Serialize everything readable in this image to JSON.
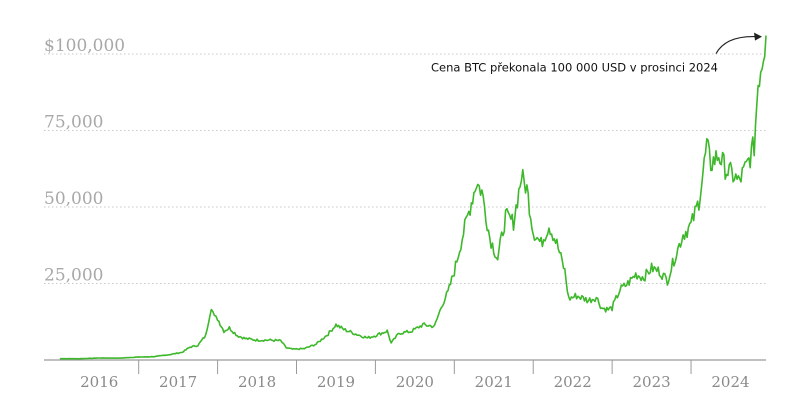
{
  "chart_data": {
    "type": "line",
    "title": "",
    "xlabel": "",
    "ylabel": "",
    "ylim": [
      0,
      107000
    ],
    "xlim": [
      2015.8,
      2024.95
    ],
    "grid": "horizontal dotted",
    "y_ticks": [
      {
        "value": 100000,
        "label": "$100,000"
      },
      {
        "value": 75000,
        "label": "75,000"
      },
      {
        "value": 50000,
        "label": "50,000"
      },
      {
        "value": 25000,
        "label": "25,000"
      }
    ],
    "x_ticks": [
      {
        "value": 2016,
        "label": "2016"
      },
      {
        "value": 2017,
        "label": "2017"
      },
      {
        "value": 2018,
        "label": "2018"
      },
      {
        "value": 2019,
        "label": "2019"
      },
      {
        "value": 2020,
        "label": "2020"
      },
      {
        "value": 2021,
        "label": "2021"
      },
      {
        "value": 2022,
        "label": "2022"
      },
      {
        "value": 2023,
        "label": "2023"
      },
      {
        "value": 2024,
        "label": "2024"
      }
    ],
    "annotation": {
      "text": "Cena BTC překonala 100 000 USD v prosinci 2024",
      "x": 2024.95,
      "y": 106000
    },
    "series": [
      {
        "color": "#3db82a",
        "x": [
          2016.0,
          2016.25,
          2016.5,
          2016.75,
          2017.0,
          2017.2,
          2017.4,
          2017.55,
          2017.65,
          2017.75,
          2017.85,
          2017.92,
          2017.96,
          2018.0,
          2018.08,
          2018.15,
          2018.25,
          2018.35,
          2018.5,
          2018.65,
          2018.8,
          2018.87,
          2018.95,
          2019.1,
          2019.25,
          2019.4,
          2019.5,
          2019.6,
          2019.75,
          2019.9,
          2020.0,
          2020.15,
          2020.2,
          2020.3,
          2020.45,
          2020.6,
          2020.75,
          2020.85,
          2020.92,
          2021.0,
          2021.1,
          2021.2,
          2021.28,
          2021.35,
          2021.45,
          2021.55,
          2021.65,
          2021.75,
          2021.85,
          2021.92,
          2022.0,
          2022.1,
          2022.2,
          2022.3,
          2022.4,
          2022.45,
          2022.55,
          2022.7,
          2022.8,
          2022.87,
          2022.95,
          2023.0,
          2023.1,
          2023.2,
          2023.3,
          2023.4,
          2023.5,
          2023.6,
          2023.7,
          2023.8,
          2023.9,
          2024.0,
          2024.1,
          2024.2,
          2024.25,
          2024.35,
          2024.45,
          2024.55,
          2024.6,
          2024.7,
          2024.8,
          2024.85,
          2024.9,
          2024.95
        ],
        "y": [
          430,
          420,
          650,
          610,
          960,
          1100,
          1800,
          2500,
          4200,
          4800,
          8000,
          17500,
          14000,
          13500,
          9500,
          10500,
          8000,
          7000,
          6500,
          6500,
          6300,
          4000,
          3500,
          3700,
          5200,
          8500,
          11500,
          10000,
          8500,
          7200,
          8000,
          9500,
          5500,
          8800,
          9300,
          11500,
          11000,
          18500,
          22000,
          29000,
          40000,
          50000,
          58000,
          55000,
          40000,
          33000,
          47000,
          45000,
          60000,
          56000,
          42000,
          38000,
          44000,
          38000,
          29000,
          20000,
          21000,
          19500,
          20500,
          17000,
          16500,
          17000,
          23000,
          25000,
          28000,
          27000,
          30000,
          29000,
          26000,
          34000,
          41000,
          44000,
          52000,
          70000,
          64000,
          67000,
          62000,
          60000,
          58000,
          63000,
          70000,
          91000,
          98000,
          106000
        ]
      }
    ]
  }
}
